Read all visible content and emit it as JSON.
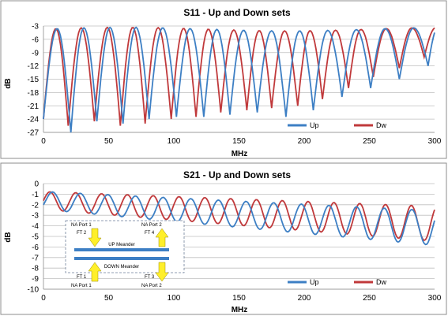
{
  "colors": {
    "up": "#3d7fc4",
    "dw": "#c0393b",
    "grid": "#bfbfbf",
    "frame": "#8c8c8c"
  },
  "chart_data": [
    {
      "type": "line",
      "title": "S11 - Up and Down sets",
      "xlabel": "MHz",
      "ylabel": "dB",
      "xlim": [
        0,
        300
      ],
      "ylim": [
        -27,
        -3
      ],
      "x_ticks": [
        0,
        50,
        100,
        150,
        200,
        250,
        300
      ],
      "y_ticks": [
        -3,
        -6,
        -9,
        -12,
        -15,
        -18,
        -21,
        -24,
        -27
      ],
      "grid": "horizontal",
      "legend_position": "bottom-right",
      "series": [
        {
          "name": "Up",
          "color": "#3d7fc4",
          "x": [],
          "y": []
        },
        {
          "name": "Dw",
          "color": "#c0393b",
          "x": [],
          "y": []
        }
      ],
      "notch_mhz": {
        "Up": [
          21,
          41,
          61,
          81,
          102,
          123,
          143,
          164,
          186,
          207,
          229,
          251,
          273,
          295
        ],
        "Dw": [
          19,
          39,
          59,
          78,
          98,
          117,
          136,
          156,
          175,
          195,
          214,
          234,
          253,
          273,
          292
        ]
      },
      "notch_depth_db": {
        "Up": [
          -27,
          -24.5,
          -25,
          -24,
          -23.5,
          -23.5,
          -23,
          -22.5,
          -23.5,
          -22,
          -19,
          -17,
          -15,
          -12
        ],
        "Dw": [
          -25.5,
          -24.5,
          -25.5,
          -25,
          -24,
          -23.5,
          -22.5,
          -22,
          -21.5,
          -21,
          -19.5,
          -17,
          -14.5,
          -12.5,
          -10
        ]
      }
    },
    {
      "type": "line",
      "title": "S21 - Up and Down sets",
      "xlabel": "MHz",
      "ylabel": "dB",
      "xlim": [
        0,
        300
      ],
      "ylim": [
        -10,
        0
      ],
      "x_ticks": [
        0,
        50,
        100,
        150,
        200,
        250,
        300
      ],
      "y_ticks": [
        0,
        -1,
        -2,
        -3,
        -4,
        -5,
        -6,
        -7,
        -8,
        -9,
        -10
      ],
      "grid": "horizontal",
      "legend_position": "bottom-right",
      "series": [
        {
          "name": "Up",
          "color": "#3d7fc4",
          "x": [],
          "y": []
        },
        {
          "name": "Dw",
          "color": "#c0393b",
          "x": [],
          "y": []
        }
      ],
      "inset": {
        "up_meander": "UP Meander",
        "down_meander": "DOWN Meander",
        "na_port_1_top": "NA Port 1",
        "na_port_2_top": "NA Port 2",
        "na_port_1_bottom": "NA Port 1",
        "na_port_2_bottom": "NA Port 2",
        "ft1": "FT 1",
        "ft2": "FT 2",
        "ft3": "FT 3",
        "ft4": "FT 4"
      }
    }
  ]
}
